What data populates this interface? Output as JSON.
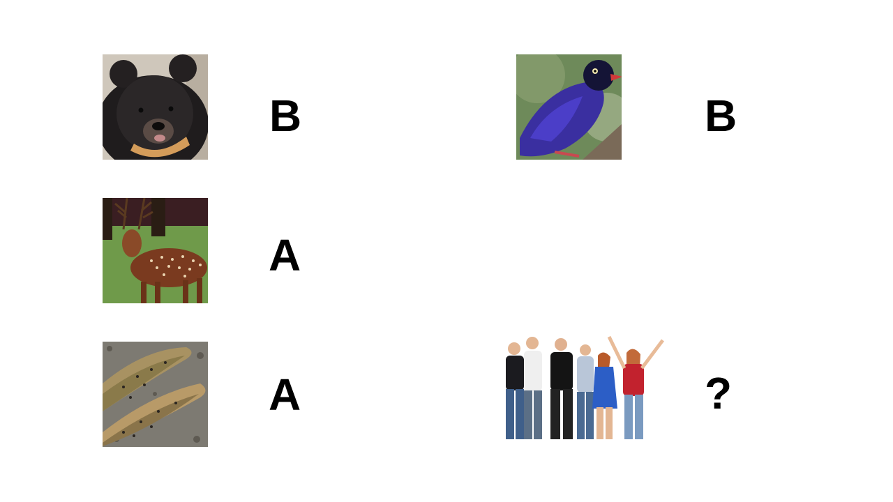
{
  "rows": [
    {
      "picture": "black-bear",
      "label": "B"
    },
    {
      "picture": "deer",
      "label": "A"
    },
    {
      "picture": "trout-fish",
      "label": "A"
    }
  ],
  "right_column": [
    {
      "picture": "blue-bird",
      "label": "B"
    },
    {
      "picture": "group-of-people",
      "label": "?"
    }
  ],
  "colors": {
    "background": "#ffffff",
    "text": "#000000"
  }
}
